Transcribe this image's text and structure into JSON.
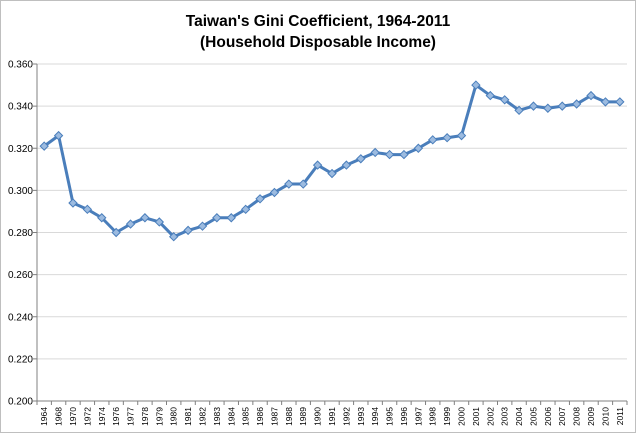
{
  "chart_data": {
    "type": "line",
    "title": "Taiwan's Gini Coefficient, 1964-2011",
    "subtitle": "(Household Disposable Income)",
    "xlabel": "",
    "ylabel": "",
    "ylim": [
      0.2,
      0.36
    ],
    "yticks": [
      "0.200",
      "0.220",
      "0.240",
      "0.260",
      "0.280",
      "0.300",
      "0.320",
      "0.340",
      "0.360"
    ],
    "grid": true,
    "legend": "none",
    "categories": [
      "1964",
      "1968",
      "1970",
      "1972",
      "1974",
      "1976",
      "1977",
      "1978",
      "1979",
      "1980",
      "1981",
      "1982",
      "1983",
      "1984",
      "1985",
      "1986",
      "1987",
      "1988",
      "1989",
      "1990",
      "1991",
      "1992",
      "1993",
      "1994",
      "1995",
      "1996",
      "1997",
      "1998",
      "1999",
      "2000",
      "2001",
      "2002",
      "2003",
      "2004",
      "2005",
      "2006",
      "2007",
      "2008",
      "2009",
      "2010",
      "2011"
    ],
    "series": [
      {
        "values": [
          0.321,
          0.326,
          0.294,
          0.291,
          0.287,
          0.28,
          0.284,
          0.287,
          0.285,
          0.278,
          0.281,
          0.283,
          0.287,
          0.287,
          0.291,
          0.296,
          0.299,
          0.303,
          0.303,
          0.312,
          0.308,
          0.312,
          0.315,
          0.318,
          0.317,
          0.317,
          0.32,
          0.324,
          0.325,
          0.326,
          0.35,
          0.345,
          0.343,
          0.338,
          0.34,
          0.339,
          0.34,
          0.341,
          0.345,
          0.342,
          0.342
        ],
        "color": "#4a7ebb",
        "marker_color": "#9cbbe0"
      }
    ]
  }
}
